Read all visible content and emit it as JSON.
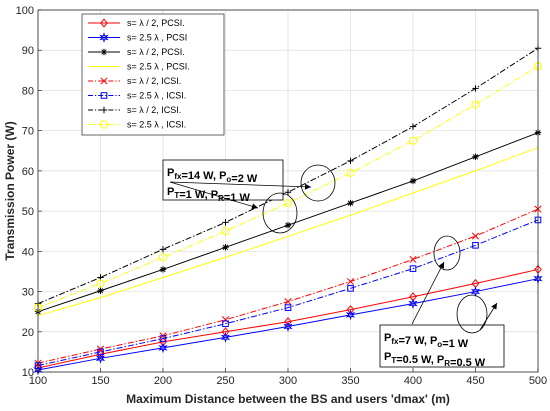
{
  "chart_data": {
    "type": "line",
    "xlabel": "Maximum Distance between the BS and users 'dmax' (m)",
    "ylabel": "Transmission Power (W)",
    "xlim": [
      100,
      500
    ],
    "ylim": [
      10,
      100
    ],
    "grid": true,
    "legend_position": "top-left",
    "x": [
      100,
      150,
      200,
      250,
      300,
      350,
      400,
      450,
      500
    ],
    "series": [
      {
        "name": "s= λ / 2, PCSI.",
        "color": "#ff0000",
        "dash": "solid",
        "marker": "diamond",
        "values": [
          11.0,
          14.4,
          17.5,
          20.0,
          22.5,
          25.5,
          28.7,
          32.0,
          35.5
        ]
      },
      {
        "name": "s= 2.5 λ , PCSI",
        "color": "#0000ff",
        "dash": "solid",
        "marker": "star",
        "values": [
          10.5,
          13.4,
          16.0,
          18.6,
          21.3,
          24.2,
          27.0,
          30.0,
          33.2
        ]
      },
      {
        "name": "s= λ / 2, PCSI.",
        "color": "#000000",
        "dash": "solid",
        "marker": "asterisk",
        "values": [
          25.0,
          30.2,
          35.5,
          41.0,
          46.5,
          52.0,
          57.5,
          63.5,
          69.5
        ]
      },
      {
        "name": "s= 2.5 λ , PCSI.",
        "color": "#ffff00",
        "dash": "solid",
        "marker": "none",
        "values": [
          24.0,
          28.5,
          33.5,
          38.5,
          43.7,
          49.0,
          54.5,
          60.0,
          65.8
        ]
      },
      {
        "name": "s= λ / 2, ICSI.",
        "color": "#ff0000",
        "dash": "dashdot",
        "marker": "x",
        "values": [
          12.2,
          15.7,
          19.0,
          23.0,
          27.5,
          32.5,
          38.0,
          43.8,
          50.5
        ]
      },
      {
        "name": "s= 2.5 λ , ICSI.",
        "color": "#0000ff",
        "dash": "dashdot",
        "marker": "square",
        "values": [
          11.6,
          15.0,
          18.3,
          22.0,
          26.0,
          30.8,
          35.7,
          41.5,
          47.8
        ]
      },
      {
        "name": "s= λ / 2, ICSI.",
        "color": "#000000",
        "dash": "dashdot",
        "marker": "plus",
        "values": [
          27.0,
          33.5,
          40.5,
          47.2,
          54.7,
          62.5,
          71.0,
          80.5,
          90.5
        ]
      },
      {
        "name": "s= 2.5 λ , ICSI.",
        "color": "#ffff00",
        "dash": "dashdot",
        "marker": "circle",
        "values": [
          26.0,
          32.0,
          38.5,
          45.0,
          52.0,
          59.5,
          67.5,
          76.5,
          86.0
        ]
      }
    ],
    "annotations": [
      {
        "lines": [
          [
            {
              "t": "P"
            },
            {
              "t": "fx",
              "sub": true
            },
            {
              "t": "=14 W, P"
            },
            {
              "t": "o",
              "sub": true
            },
            {
              "t": "=2 W"
            }
          ],
          [
            {
              "t": "P"
            },
            {
              "t": "T",
              "sub": true
            },
            {
              "t": "=1 W, P"
            },
            {
              "t": "R",
              "sub": true
            },
            {
              "t": "=1 W"
            }
          ]
        ]
      },
      {
        "lines": [
          [
            {
              "t": "P"
            },
            {
              "t": "fx",
              "sub": true
            },
            {
              "t": "=7 W, P"
            },
            {
              "t": "o",
              "sub": true
            },
            {
              "t": "=1 W"
            }
          ],
          [
            {
              "t": "P"
            },
            {
              "t": "T",
              "sub": true
            },
            {
              "t": "=0.5 W, P"
            },
            {
              "t": "R",
              "sub": true
            },
            {
              "t": "=0.5 W"
            }
          ]
        ]
      }
    ]
  }
}
